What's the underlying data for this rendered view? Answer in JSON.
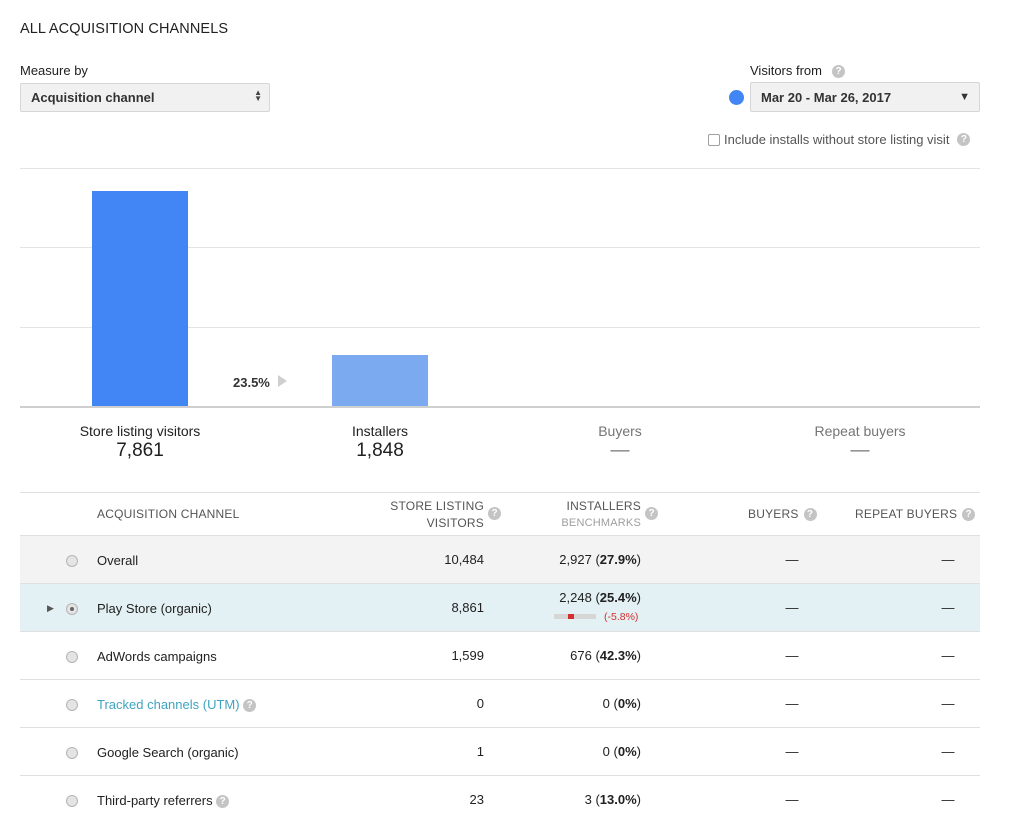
{
  "page_title": "ALL ACQUISITION CHANNELS",
  "measure": {
    "label": "Measure by",
    "value": "Acquisition channel"
  },
  "visitors": {
    "label": "Visitors from",
    "range": "Mar 20 - Mar 26, 2017",
    "series_color": "#4285f4"
  },
  "include_installs": {
    "label": "Include installs without store listing visit",
    "checked": false
  },
  "help_glyph": "?",
  "chart_data": {
    "type": "bar",
    "categories": [
      "Store listing visitors",
      "Installers",
      "Buyers",
      "Repeat buyers"
    ],
    "values": [
      7861,
      1848,
      null,
      null
    ],
    "bar_colors": [
      "#4285f4",
      "#7baaf0"
    ],
    "ylim": [
      0,
      8700
    ],
    "grid": true,
    "conversion_label": "23.5%"
  },
  "metrics": [
    {
      "label": "Store listing visitors",
      "value": "7,861"
    },
    {
      "label": "Installers",
      "value": "1,848"
    },
    {
      "label": "Buyers",
      "value": "—"
    },
    {
      "label": "Repeat buyers",
      "value": "—"
    }
  ],
  "table": {
    "headers": {
      "channel": "ACQUISITION CHANNEL",
      "visitors_line1": "STORE LISTING",
      "visitors_line2": "VISITORS",
      "installers": "INSTALLERS",
      "benchmarks": "BENCHMARKS",
      "buyers": "BUYERS",
      "repeat": "REPEAT BUYERS"
    },
    "rows": [
      {
        "channel": "Overall",
        "visitors": "10,484",
        "installers": "2,927",
        "pct": "27.9%",
        "buyers": "—",
        "repeat": "—"
      },
      {
        "channel": "Play Store (organic)",
        "visitors": "8,861",
        "installers": "2,248",
        "pct": "25.4%",
        "benchmark_diff": "(-5.8%)",
        "benchmark_position": 0.4,
        "buyers": "—",
        "repeat": "—"
      },
      {
        "channel": "AdWords campaigns",
        "visitors": "1,599",
        "installers": "676",
        "pct": "42.3%",
        "buyers": "—",
        "repeat": "—"
      },
      {
        "channel": "Tracked channels (UTM)",
        "visitors": "0",
        "installers": "0",
        "pct": "0%",
        "buyers": "—",
        "repeat": "—"
      },
      {
        "channel": "Google Search (organic)",
        "visitors": "1",
        "installers": "0",
        "pct": "0%",
        "buyers": "—",
        "repeat": "—"
      },
      {
        "channel": "Third-party referrers",
        "visitors": "23",
        "installers": "3",
        "pct": "13.0%",
        "buyers": "—",
        "repeat": "—"
      }
    ]
  }
}
